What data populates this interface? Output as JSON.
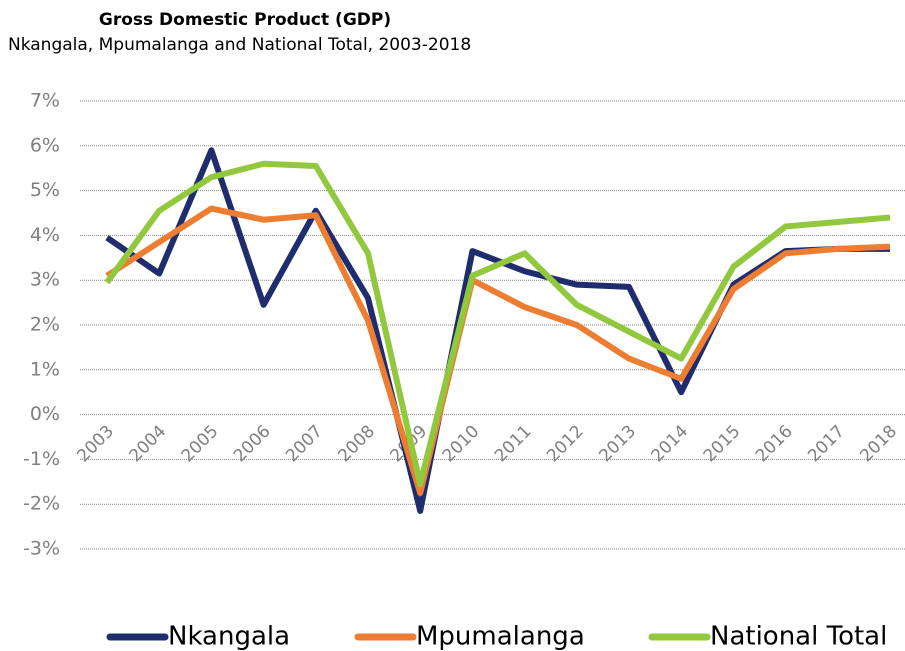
{
  "chart_data": {
    "type": "line",
    "title": "Gross Domestic Product (GDP)",
    "subtitle": "Nkangala, Mpumalanga and National Total, 2003-2018",
    "categories": [
      "2003",
      "2004",
      "2005",
      "2006",
      "2007",
      "2008",
      "2009",
      "2010",
      "2011",
      "2012",
      "2013",
      "2014",
      "2015",
      "2016",
      "2017",
      "2018"
    ],
    "series": [
      {
        "name": "Nkangala",
        "color": "#1f2d6e",
        "values": [
          3.95,
          3.15,
          5.9,
          2.45,
          4.55,
          2.6,
          -2.15,
          3.65,
          3.2,
          2.9,
          2.85,
          0.5,
          2.9,
          3.65,
          3.7,
          3.7
        ]
      },
      {
        "name": "Mpumalanga",
        "color": "#ed7d31",
        "values": [
          3.1,
          3.85,
          4.6,
          4.35,
          4.45,
          2.1,
          -1.75,
          3.0,
          2.4,
          2.0,
          1.25,
          0.8,
          2.8,
          3.6,
          3.7,
          3.75
        ]
      },
      {
        "name": "National Total",
        "color": "#92c83e",
        "values": [
          2.95,
          4.55,
          5.3,
          5.6,
          5.55,
          3.6,
          -1.55,
          3.1,
          3.6,
          2.45,
          1.85,
          1.25,
          3.3,
          4.2,
          4.3,
          4.4
        ]
      }
    ],
    "ylim": [
      -3,
      7
    ],
    "yticks": [
      {
        "value": -3,
        "label": "-3%"
      },
      {
        "value": -2,
        "label": "-2%"
      },
      {
        "value": -1,
        "label": "-1%"
      },
      {
        "value": 0,
        "label": "0%"
      },
      {
        "value": 1,
        "label": "1%"
      },
      {
        "value": 2,
        "label": "2%"
      },
      {
        "value": 3,
        "label": "3%"
      },
      {
        "value": 4,
        "label": "4%"
      },
      {
        "value": 5,
        "label": "5%"
      },
      {
        "value": 6,
        "label": "6%"
      },
      {
        "value": 7,
        "label": "7%"
      }
    ],
    "grid": true,
    "legend": "bottom"
  }
}
